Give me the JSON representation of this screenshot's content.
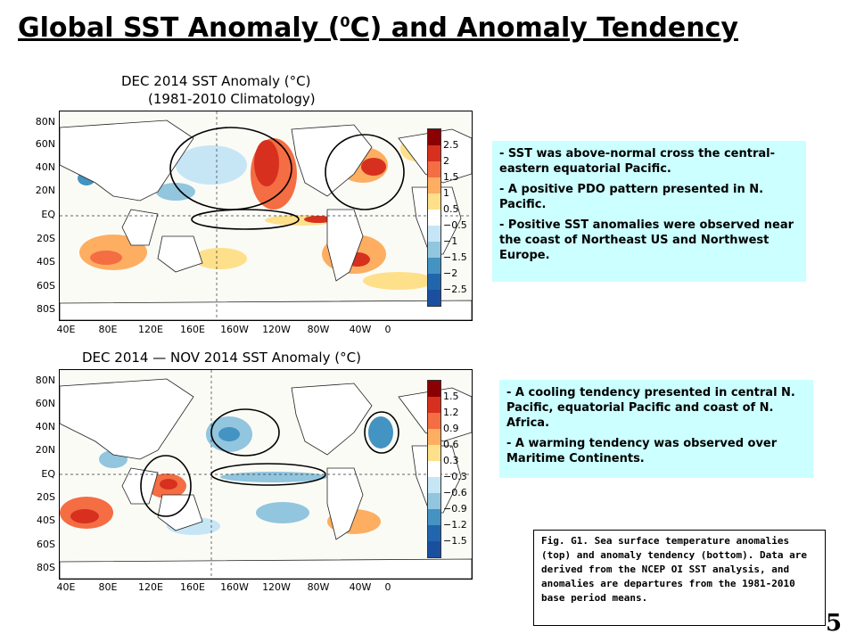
{
  "header": {
    "title_prefix": "Global SST Anomaly (",
    "title_sup": "0",
    "title_suffix": "C) and Anomaly Tendency"
  },
  "top_map": {
    "title_line1": "DEC 2014 SST Anomaly (°C)",
    "title_line2": "(1981-2010 Climatology)",
    "lat_labels": [
      "80N",
      "60N",
      "40N",
      "20N",
      "EQ",
      "20S",
      "40S",
      "60S",
      "80S"
    ],
    "lon_labels": [
      "40E",
      "80E",
      "120E",
      "160E",
      "160W",
      "120W",
      "80W",
      "40W",
      "0"
    ],
    "colorbar_labels": [
      "2.5",
      "2",
      "1.5",
      "1",
      "0.5",
      "−0.5",
      "−1",
      "−1.5",
      "−2",
      "−2.5"
    ],
    "colorbar_colors": [
      "#8b0000",
      "#d7301f",
      "#f46d43",
      "#fdae61",
      "#fee08b",
      "#ffffff",
      "#c6e6f5",
      "#92c5de",
      "#4393c3",
      "#2166ac",
      "#1a4fa0"
    ]
  },
  "bottom_map": {
    "title": "DEC 2014 — NOV 2014 SST Anomaly (°C)",
    "lat_labels": [
      "80N",
      "60N",
      "40N",
      "20N",
      "EQ",
      "20S",
      "40S",
      "60S",
      "80S"
    ],
    "lon_labels": [
      "40E",
      "80E",
      "120E",
      "160E",
      "160W",
      "120W",
      "80W",
      "40W",
      "0"
    ],
    "colorbar_labels": [
      "1.5",
      "1.2",
      "0.9",
      "0.6",
      "0.3",
      "−0.3",
      "−0.6",
      "−0.9",
      "−1.2",
      "−1.5"
    ],
    "colorbar_colors": [
      "#8b0000",
      "#d7301f",
      "#f46d43",
      "#fdae61",
      "#fee08b",
      "#ffffff",
      "#c6e6f5",
      "#92c5de",
      "#4393c3",
      "#2166ac",
      "#1a4fa0"
    ]
  },
  "note_top": {
    "items": [
      "- SST was above-normal cross the central-eastern equatorial Pacific.",
      "- A positive PDO pattern presented in N. Pacific.",
      "- Positive SST anomalies were observed near the coast of Northeast US and Northwest Europe."
    ]
  },
  "note_bottom": {
    "items": [
      "- A cooling tendency presented in central N. Pacific, equatorial Pacific and coast of N. Africa.",
      "- A warming tendency was observed over Maritime Continents."
    ]
  },
  "caption": "Fig. G1. Sea surface temperature anomalies (top) and anomaly tendency (bottom). Data are derived from the NCEP OI SST analysis, and anomalies are departures from the 1981-2010 base period means.",
  "page_number": "5"
}
